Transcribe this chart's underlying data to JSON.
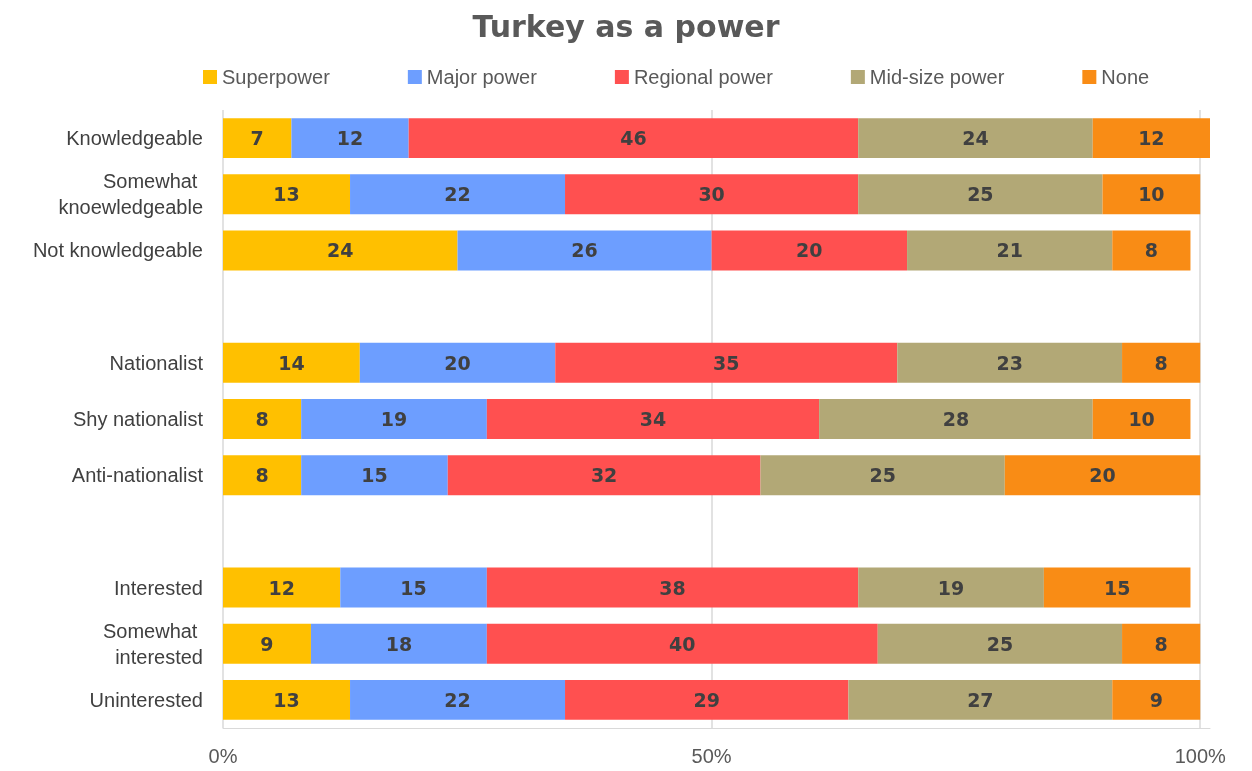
{
  "chart_data": {
    "type": "bar",
    "orientation": "horizontal",
    "stacked": true,
    "title": "Turkey as a power",
    "categories": [
      "Knowledgeable",
      "Somewhat knoewledgeable",
      "Not knowledgeable",
      null,
      "Nationalist",
      "Shy nationalist",
      "Anti-nationalist",
      null,
      "Interested",
      "Somewhat interested",
      "Uninterested"
    ],
    "series": [
      {
        "name": "Superpower",
        "color": "#ffc000",
        "values": [
          7,
          13,
          24,
          null,
          14,
          8,
          8,
          null,
          12,
          9,
          13
        ]
      },
      {
        "name": "Major power",
        "color": "#6d9eff",
        "values": [
          12,
          22,
          26,
          null,
          20,
          19,
          15,
          null,
          15,
          18,
          22
        ]
      },
      {
        "name": "Regional power",
        "color": "#ff5050",
        "values": [
          46,
          30,
          20,
          null,
          35,
          34,
          32,
          null,
          38,
          40,
          29
        ]
      },
      {
        "name": "Mid-size power",
        "color": "#b2a876",
        "values": [
          24,
          25,
          21,
          null,
          23,
          28,
          25,
          null,
          19,
          25,
          27
        ]
      },
      {
        "name": "None",
        "color": "#f98c15",
        "values": [
          12,
          10,
          8,
          null,
          8,
          10,
          20,
          null,
          15,
          8,
          9
        ]
      }
    ],
    "xlim": [
      0,
      101
    ],
    "xticks": [
      {
        "value": 0,
        "label": "0%"
      },
      {
        "value": 50,
        "label": "50%"
      },
      {
        "value": 100,
        "label": "100%"
      }
    ],
    "grid": "x",
    "legend": "top",
    "data_labels": true
  }
}
